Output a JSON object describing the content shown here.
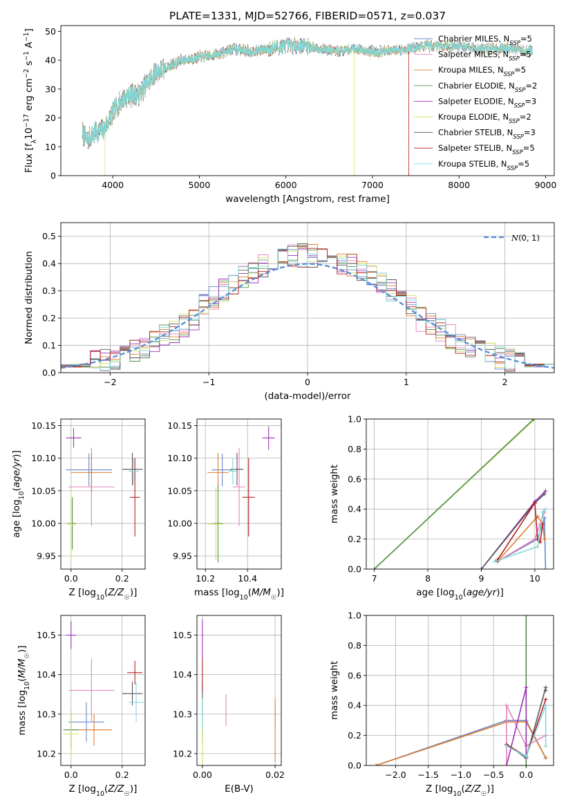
{
  "figure": {
    "title": "PLATE=1331, MJD=52766, FIBERID=0571, z=0.037",
    "series": [
      {
        "name": "Chabrier MILES, N_SSP=5",
        "color": "#6688cc"
      },
      {
        "name": "Salpeter MILES, N_SSP=5",
        "color": "#e47fbf"
      },
      {
        "name": "Kroupa MILES, N_SSP=5",
        "color": "#e07b2a"
      },
      {
        "name": "Chabrier ELODIE, N_SSP=2",
        "color": "#4f8f4f"
      },
      {
        "name": "Salpeter ELODIE, N_SSP=3",
        "color": "#9b30b6"
      },
      {
        "name": "Kroupa ELODIE, N_SSP=2",
        "color": "#cfe36a"
      },
      {
        "name": "Chabrier STELIB, N_SSP=3",
        "color": "#555555"
      },
      {
        "name": "Salpeter STELIB, N_SSP=5",
        "color": "#b51f1f"
      },
      {
        "name": "Kroupa STELIB, N_SSP=5",
        "color": "#7fd8dc"
      }
    ]
  },
  "chart_data": [
    {
      "id": "spectrum",
      "type": "line",
      "xlabel": "wavelength [Angstrom, rest frame]",
      "ylabel": "Flux [f_λ 10^-17 erg cm^-2 s^-1 A^-1]",
      "xlim": [
        3400,
        9100
      ],
      "ylim": [
        0,
        52
      ],
      "xticks": [
        4000,
        5000,
        6000,
        7000,
        8000,
        9000
      ],
      "yticks": [
        0,
        10,
        20,
        30,
        40,
        50
      ],
      "grid": false,
      "legend": "upper right",
      "spectrum_envelope": {
        "x": [
          3650,
          3700,
          3800,
          3900,
          4000,
          4100,
          4200,
          4300,
          4400,
          4500,
          4600,
          4800,
          5000,
          5200,
          5400,
          5600,
          5800,
          6000,
          6200,
          6400,
          6600,
          6800,
          7000,
          7200,
          7400,
          7600,
          7800,
          8000,
          8200,
          8400,
          8600,
          8850
        ],
        "y": [
          15,
          12,
          15,
          16,
          22,
          26,
          28,
          28,
          32,
          36,
          37,
          40,
          41,
          42,
          44,
          43,
          44,
          45,
          45,
          44,
          43,
          44,
          43,
          43,
          44,
          45,
          45,
          45,
          44,
          44,
          44,
          43
        ]
      },
      "model_cutoffs": [
        {
          "x": 3910,
          "series_index": 5
        },
        {
          "x": 6790,
          "series_index": 5
        },
        {
          "x": 7420,
          "series_index": 7
        }
      ]
    },
    {
      "id": "residuals",
      "type": "step",
      "xlabel": "(data-model)/error",
      "ylabel": "Normed distribution",
      "xlim": [
        -2.5,
        2.5
      ],
      "ylim": [
        0,
        0.55
      ],
      "xticks": [
        -2,
        -1,
        0,
        1,
        2
      ],
      "yticks": [
        0.0,
        0.1,
        0.2,
        0.3,
        0.4,
        0.5
      ],
      "grid": true,
      "legend": "upper right",
      "reference_label": "N(0,1)",
      "reference_color": "#5a8fd6",
      "bin_width": 0.1,
      "bin_start": -2.5
    },
    {
      "id": "age_vs_Z",
      "type": "errorbar",
      "xlabel": "Z [log10(Z/Z☉)]",
      "ylabel": "age [log10(age/yr)]",
      "xlim": [
        -0.04,
        0.29
      ],
      "ylim": [
        9.93,
        10.16
      ],
      "xticks": [
        0.0,
        0.2
      ],
      "yticks": [
        9.95,
        10.0,
        10.05,
        10.1,
        10.15
      ],
      "grid": true,
      "points": [
        {
          "s": 0,
          "x": 0.07,
          "y": 10.082,
          "xe": 0.09,
          "ye": 0.025
        },
        {
          "s": 1,
          "x": 0.08,
          "y": 10.056,
          "xe": 0.09,
          "ye": 0.06
        },
        {
          "s": 2,
          "x": 0.08,
          "y": 10.078,
          "xe": 0.08,
          "ye": 0.03
        },
        {
          "s": 3,
          "x": 0.005,
          "y": 10.0,
          "xe": 0.015,
          "ye": 0.04
        },
        {
          "s": 4,
          "x": 0.01,
          "y": 10.131,
          "xe": 0.03,
          "ye": 0.015
        },
        {
          "s": 5,
          "x": 0.0,
          "y": 9.999,
          "xe": 0.02,
          "ye": 0.055
        },
        {
          "s": 6,
          "x": 0.24,
          "y": 10.083,
          "xe": 0.04,
          "ye": 0.025
        },
        {
          "s": 7,
          "x": 0.25,
          "y": 10.04,
          "xe": 0.02,
          "ye": 0.06
        },
        {
          "s": 8,
          "x": 0.245,
          "y": 10.08,
          "xe": 0.02,
          "ye": 0.02
        }
      ]
    },
    {
      "id": "age_vs_mass",
      "type": "errorbar",
      "xlabel": "mass [log10(M/M☉)]",
      "ylabel": "",
      "xlim": [
        10.16,
        10.56
      ],
      "ylim": [
        9.93,
        10.16
      ],
      "xticks": [
        10.2,
        10.4
      ],
      "yticks": [
        9.95,
        10.0,
        10.05,
        10.1,
        10.15
      ],
      "grid": true,
      "points": [
        {
          "s": 0,
          "x": 10.28,
          "y": 10.082,
          "xe": 0.05,
          "ye": 0.025
        },
        {
          "s": 1,
          "x": 10.36,
          "y": 10.056,
          "xe": 0.03,
          "ye": 0.06
        },
        {
          "s": 2,
          "x": 10.26,
          "y": 10.078,
          "xe": 0.05,
          "ye": 0.03
        },
        {
          "s": 3,
          "x": 10.26,
          "y": 10.0,
          "xe": 0.02,
          "ye": 0.06
        },
        {
          "s": 4,
          "x": 10.5,
          "y": 10.131,
          "xe": 0.03,
          "ye": 0.018
        },
        {
          "s": 5,
          "x": 10.25,
          "y": 9.999,
          "xe": 0.04,
          "ye": 0.055
        },
        {
          "s": 6,
          "x": 10.35,
          "y": 10.083,
          "xe": 0.03,
          "ye": 0.025
        },
        {
          "s": 7,
          "x": 10.405,
          "y": 10.04,
          "xe": 0.03,
          "ye": 0.06
        },
        {
          "s": 8,
          "x": 10.33,
          "y": 10.08,
          "xe": 0.02,
          "ye": 0.02
        }
      ]
    },
    {
      "id": "mass_weight_vs_age",
      "type": "line",
      "xlabel": "age [log10(age/yr)]",
      "ylabel": "mass weight",
      "xlim": [
        6.85,
        10.35
      ],
      "ylim": [
        0,
        1.0
      ],
      "xticks": [
        7,
        8,
        9,
        10
      ],
      "yticks": [
        0.0,
        0.2,
        0.4,
        0.6,
        0.8,
        1.0
      ],
      "grid": true,
      "lines": [
        {
          "s": 5,
          "x": [
            7.0,
            10.0
          ],
          "y": [
            0.0,
            1.0
          ]
        },
        {
          "s": 3,
          "x": [
            7.0,
            9.98
          ],
          "y": [
            0.0,
            1.0
          ]
        },
        {
          "s": 4,
          "x": [
            9.0,
            10.0,
            10.2
          ],
          "y": [
            0.0,
            0.45,
            0.52
          ]
        },
        {
          "s": 6,
          "x": [
            9.0,
            10.0,
            10.18
          ],
          "y": [
            0.0,
            0.44,
            0.5
          ]
        },
        {
          "s": 0,
          "x": [
            9.3,
            10.05,
            10.18,
            10.2
          ],
          "y": [
            0.05,
            0.2,
            0.34,
            0.0
          ]
        },
        {
          "s": 1,
          "x": [
            9.3,
            10.0,
            10.1,
            10.18
          ],
          "y": [
            0.05,
            0.2,
            0.3,
            0.38
          ]
        },
        {
          "s": 2,
          "x": [
            9.3,
            10.05,
            10.15,
            10.18
          ],
          "y": [
            0.05,
            0.35,
            0.3,
            0.2
          ]
        },
        {
          "s": 7,
          "x": [
            9.3,
            10.0,
            10.05,
            10.1,
            10.15
          ],
          "y": [
            0.06,
            0.44,
            0.2,
            0.18,
            0.3
          ]
        },
        {
          "s": 8,
          "x": [
            9.25,
            10.05,
            10.15,
            10.2
          ],
          "y": [
            0.05,
            0.15,
            0.38,
            0.4
          ]
        }
      ]
    },
    {
      "id": "mass_vs_Z",
      "type": "errorbar",
      "xlabel": "Z [log10(Z/Z☉)]",
      "ylabel": "mass [log10(M/M☉)]",
      "xlim": [
        -0.04,
        0.29
      ],
      "ylim": [
        10.17,
        10.55
      ],
      "xticks": [
        0.0,
        0.2
      ],
      "yticks": [
        10.2,
        10.3,
        10.4,
        10.5
      ],
      "grid": true,
      "points": [
        {
          "s": 0,
          "x": 0.06,
          "y": 10.28,
          "xe": 0.07,
          "ye": 0.05
        },
        {
          "s": 1,
          "x": 0.08,
          "y": 10.36,
          "xe": 0.09,
          "ye": 0.08
        },
        {
          "s": 2,
          "x": 0.09,
          "y": 10.26,
          "xe": 0.07,
          "ye": 0.04
        },
        {
          "s": 3,
          "x": 0.0,
          "y": 10.26,
          "xe": 0.03,
          "ye": 0.05
        },
        {
          "s": 4,
          "x": 0.0,
          "y": 10.5,
          "xe": 0.02,
          "ye": 0.035
        },
        {
          "s": 5,
          "x": 0.0,
          "y": 10.25,
          "xe": 0.03,
          "ye": 0.06
        },
        {
          "s": 6,
          "x": 0.24,
          "y": 10.352,
          "xe": 0.04,
          "ye": 0.03
        },
        {
          "s": 7,
          "x": 0.25,
          "y": 10.405,
          "xe": 0.03,
          "ye": 0.03
        },
        {
          "s": 8,
          "x": 0.255,
          "y": 10.33,
          "xe": 0.03,
          "ye": 0.05
        }
      ]
    },
    {
      "id": "mass_vs_EBV",
      "type": "errorbar",
      "xlabel": "E(B-V)",
      "ylabel": "",
      "xlim": [
        -0.0015,
        0.0217
      ],
      "ylim": [
        10.17,
        10.55
      ],
      "xticks": [
        0.0,
        0.02
      ],
      "yticks": [
        10.2,
        10.3,
        10.4,
        10.5
      ],
      "grid": true,
      "points": [
        {
          "s": 0,
          "x": 0.02,
          "y": 10.3,
          "xe": 0.0,
          "ye": 0.03
        },
        {
          "s": 1,
          "x": 0.0065,
          "y": 10.31,
          "xe": 0.0,
          "ye": 0.04
        },
        {
          "s": 2,
          "x": 0.02,
          "y": 10.26,
          "xe": 0.0,
          "ye": 0.08
        },
        {
          "s": 3,
          "x": 0.0,
          "y": 10.28,
          "xe": 0.0,
          "ye": 0.05
        },
        {
          "s": 4,
          "x": 0.0,
          "y": 10.49,
          "xe": 0.0,
          "ye": 0.05
        },
        {
          "s": 5,
          "x": 0.0,
          "y": 10.22,
          "xe": 0.0,
          "ye": 0.06
        },
        {
          "s": 6,
          "x": 0.0,
          "y": 10.35,
          "xe": 0.0,
          "ye": 0.03
        },
        {
          "s": 7,
          "x": 0.0,
          "y": 10.4,
          "xe": 0.0,
          "ye": 0.04
        },
        {
          "s": 8,
          "x": 0.0,
          "y": 10.3,
          "xe": 0.0,
          "ye": 0.04
        }
      ]
    },
    {
      "id": "mass_weight_vs_Z",
      "type": "line",
      "xlabel": "Z [log10(Z/Z☉)]",
      "ylabel": "mass weight",
      "xlim": [
        -2.45,
        0.42
      ],
      "ylim": [
        0,
        1.0
      ],
      "xticks": [
        -2.0,
        -1.5,
        -1.0,
        -0.5,
        0.0
      ],
      "yticks": [
        0.0,
        0.2,
        0.4,
        0.6,
        0.8,
        1.0
      ],
      "grid": true,
      "lines": [
        {
          "s": 5,
          "x": [
            0.0,
            0.0
          ],
          "y": [
            0.0,
            1.0
          ]
        },
        {
          "s": 3,
          "x": [
            0.0,
            0.0
          ],
          "y": [
            0.0,
            1.0
          ]
        },
        {
          "s": 0,
          "x": [
            -2.3,
            -0.3,
            0.0,
            0.3
          ],
          "y": [
            0.0,
            0.3,
            0.3,
            0.05
          ]
        },
        {
          "s": 2,
          "x": [
            -2.3,
            -0.3,
            0.0,
            0.3
          ],
          "y": [
            0.0,
            0.29,
            0.29,
            0.05
          ]
        },
        {
          "s": 1,
          "x": [
            -0.3,
            -0.3,
            0.0,
            0.3
          ],
          "y": [
            0.0,
            0.4,
            0.13,
            0.2
          ]
        },
        {
          "s": 4,
          "x": [
            -0.3,
            0.0,
            0.0
          ],
          "y": [
            0.0,
            0.52,
            0.05
          ]
        },
        {
          "s": 6,
          "x": [
            -0.3,
            0.0,
            0.3,
            0.3
          ],
          "y": [
            0.14,
            0.05,
            0.52,
            0.5
          ]
        },
        {
          "s": 7,
          "x": [
            -0.3,
            0.0,
            0.3
          ],
          "y": [
            0.14,
            0.06,
            0.44
          ]
        },
        {
          "s": 8,
          "x": [
            -0.3,
            0.0,
            0.3,
            0.3
          ],
          "y": [
            0.13,
            0.06,
            0.4,
            0.13
          ]
        }
      ]
    }
  ]
}
